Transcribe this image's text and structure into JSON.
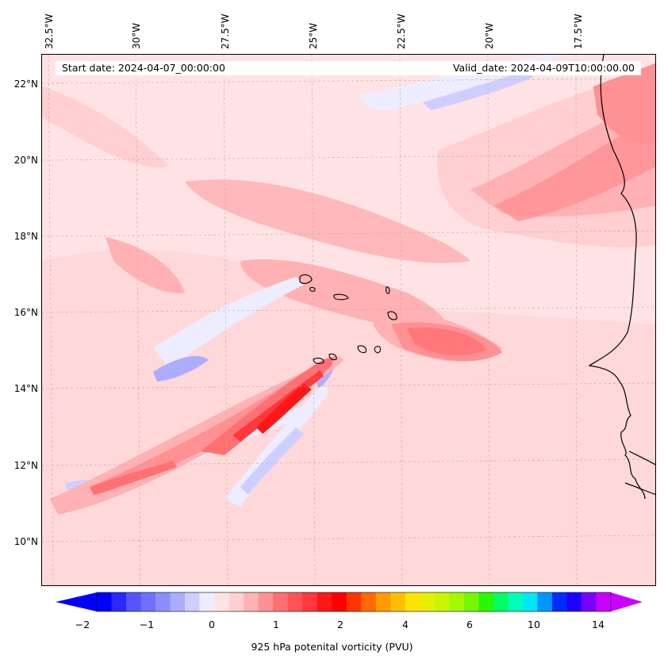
{
  "map": {
    "start_date": "Start date: 2024-04-07_00:00:00",
    "valid_date": "Valid_date: 2024-04-09T10:00:00.00",
    "longitude_labels": [
      "32.5°W",
      "30°W",
      "27.5°W",
      "25°W",
      "22.5°W",
      "20°W",
      "17.5°W"
    ],
    "latitude_labels": [
      "22°N",
      "20°N",
      "18°N",
      "16°N",
      "14°N",
      "12°N",
      "10°N"
    ],
    "field": "925 hPa potential vorticity",
    "coastline_color": "#000000",
    "gridline_color": "#b0b0b0"
  },
  "colorbar": {
    "title": "925 hPa potenital vorticity (PVU)",
    "tick_labels": [
      "−2",
      "−1",
      "0",
      "1",
      "2",
      "4",
      "6",
      "10",
      "14"
    ],
    "colors": [
      "#0000ff",
      "#2a2aff",
      "#5555ff",
      "#7070ff",
      "#8d8dff",
      "#adadff",
      "#cfcfff",
      "#ededff",
      "#ffe3e4",
      "#ffcfd1",
      "#ffb1b3",
      "#ff9093",
      "#ff7073",
      "#ff5457",
      "#ff383b",
      "#ff1717",
      "#ff0000",
      "#ff3500",
      "#ff6a00",
      "#ff9a00",
      "#ffbe00",
      "#ffe300",
      "#e6ef00",
      "#c8f500",
      "#a4f800",
      "#73f800",
      "#29f800",
      "#00ff63",
      "#00ffb9",
      "#00e6f7",
      "#0096ff",
      "#002cff",
      "#1e00ff",
      "#7a00ff",
      "#c800ff"
    ],
    "extend_min_color": "#0000ff",
    "extend_max_color": "#cc00ff"
  }
}
